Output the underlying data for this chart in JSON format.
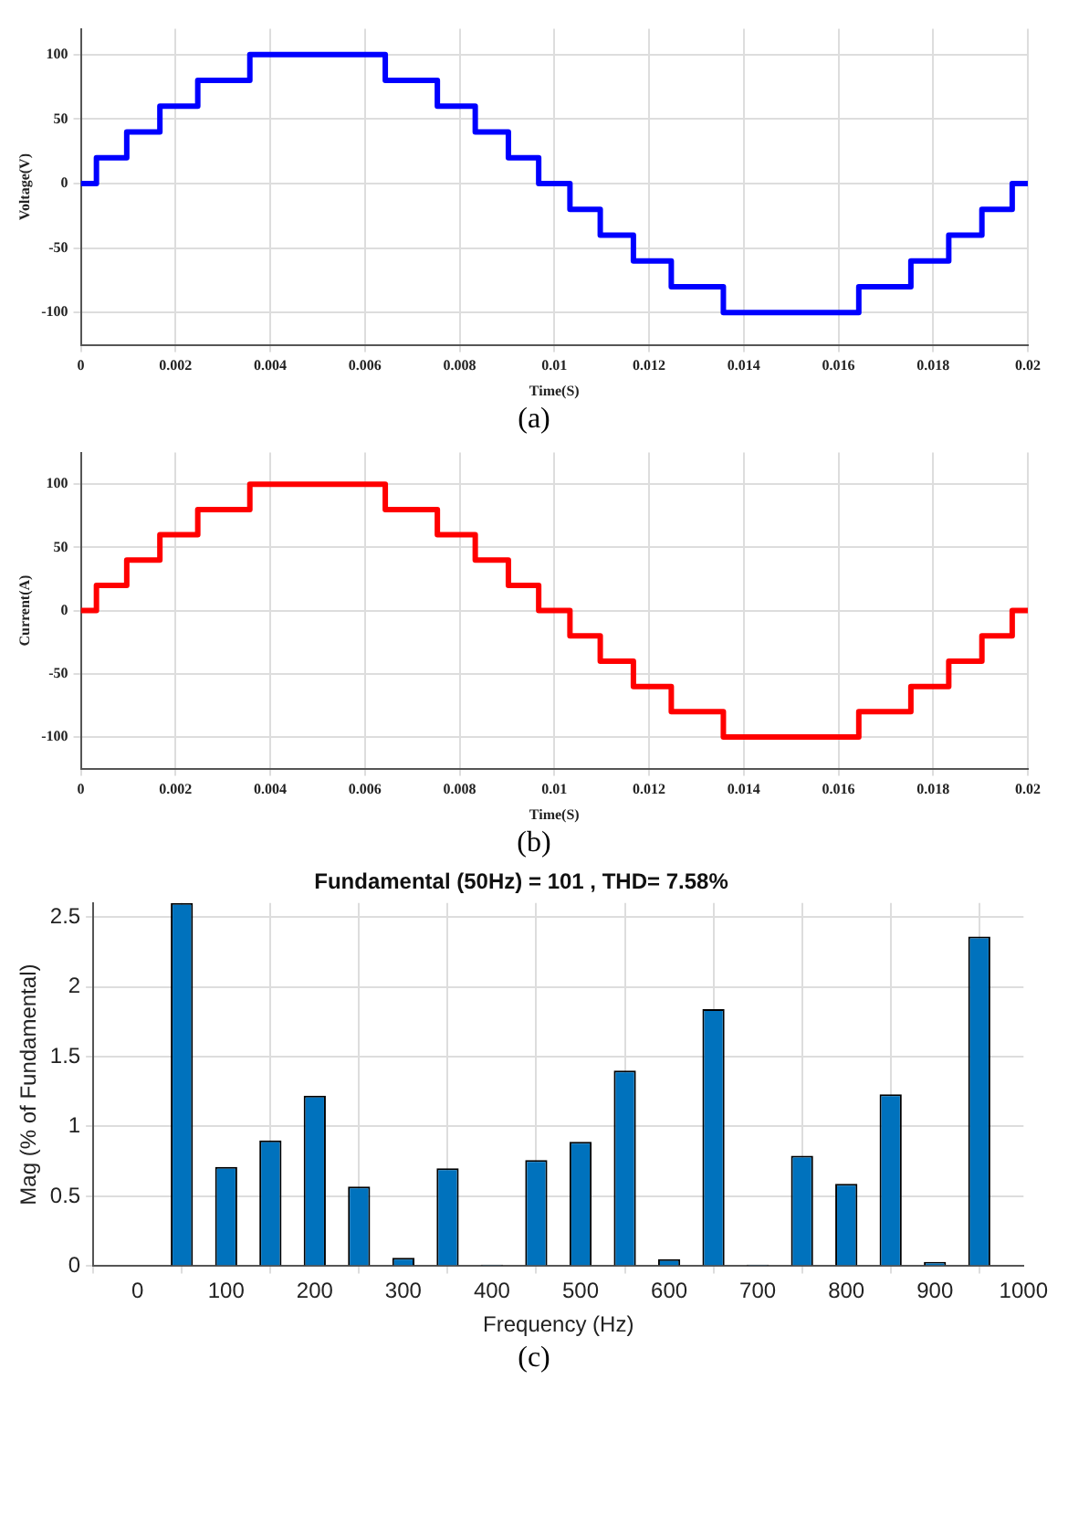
{
  "chart_data": [
    {
      "type": "step",
      "xlabel": "Time(S)",
      "ylabel": "Voltage(V)",
      "annotations": [
        "(a)"
      ],
      "xlim": [
        0,
        0.02
      ],
      "xticks": [
        0,
        0.002,
        0.004,
        0.006,
        0.008,
        0.01,
        0.012,
        0.014,
        0.016,
        0.018,
        0.02
      ],
      "ylim": [
        -125,
        120
      ],
      "yticks": [
        -100,
        -50,
        0,
        50,
        100
      ],
      "grid": true,
      "series": [
        {
          "color": "#0000ff",
          "x": [
            0,
            0.00033,
            0.00097,
            0.00167,
            0.00247,
            0.00357,
            0.00643,
            0.00753,
            0.00833,
            0.00903,
            0.00967,
            0.01033,
            0.01097,
            0.01167,
            0.01247,
            0.01357,
            0.01643,
            0.01753,
            0.01833,
            0.01903,
            0.01967,
            0.02
          ],
          "values": [
            0,
            20,
            40,
            60,
            80,
            100,
            80,
            60,
            40,
            20,
            0,
            -20,
            -40,
            -60,
            -80,
            -100,
            -80,
            -60,
            -40,
            -20,
            0,
            0
          ]
        }
      ]
    },
    {
      "type": "step",
      "xlabel": "Time(S)",
      "ylabel": "Current(A)",
      "annotations": [
        "(b)"
      ],
      "xlim": [
        0,
        0.02
      ],
      "xticks": [
        0,
        0.002,
        0.004,
        0.006,
        0.008,
        0.01,
        0.012,
        0.014,
        0.016,
        0.018,
        0.02
      ],
      "ylim": [
        -125,
        125
      ],
      "yticks": [
        -100,
        -50,
        0,
        50,
        100
      ],
      "grid": true,
      "series": [
        {
          "color": "#ff0000",
          "x": [
            0,
            0.00033,
            0.00097,
            0.00167,
            0.00247,
            0.00357,
            0.00643,
            0.00753,
            0.00833,
            0.00903,
            0.00967,
            0.01033,
            0.01097,
            0.01167,
            0.01247,
            0.01357,
            0.01643,
            0.01753,
            0.01833,
            0.01903,
            0.01967,
            0.02
          ],
          "values": [
            0,
            20,
            40,
            60,
            80,
            100,
            80,
            60,
            40,
            20,
            0,
            -20,
            -40,
            -60,
            -80,
            -100,
            -80,
            -60,
            -40,
            -20,
            0,
            0
          ]
        }
      ]
    },
    {
      "type": "bar",
      "title": "Fundamental (50Hz) = 101 , THD= 7.58%",
      "xlabel": "Frequency (Hz)",
      "ylabel": "Mag (% of Fundamental)",
      "annotations": [
        "(c)"
      ],
      "xlim": [
        -50,
        1000
      ],
      "xticks": [
        0,
        100,
        200,
        300,
        400,
        500,
        600,
        700,
        800,
        900,
        1000
      ],
      "ylim": [
        0,
        2.6
      ],
      "yticks": [
        0,
        0.5,
        1,
        1.5,
        2,
        2.5
      ],
      "grid": true,
      "series": [
        {
          "color": "#0072bd",
          "x": [
            0,
            50,
            100,
            150,
            200,
            250,
            300,
            350,
            400,
            450,
            500,
            550,
            600,
            650,
            700,
            750,
            800,
            850,
            900,
            950
          ],
          "values": [
            0,
            2.6,
            0.71,
            0.9,
            1.22,
            0.57,
            0.06,
            0.7,
            0.01,
            0.76,
            0.89,
            1.4,
            0.05,
            1.84,
            0.01,
            0.79,
            0.59,
            1.23,
            0.03,
            2.36
          ]
        }
      ]
    }
  ]
}
